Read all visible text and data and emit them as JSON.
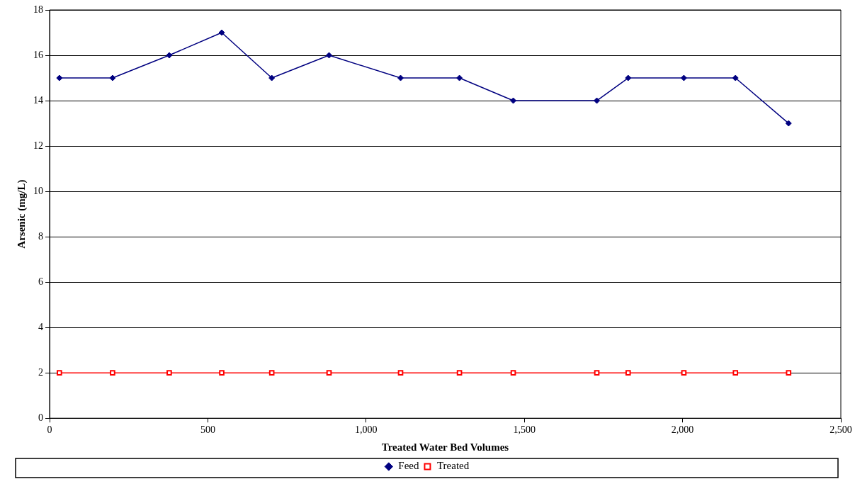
{
  "chart_data": {
    "type": "line",
    "xlabel": "Treated Water Bed Volumes",
    "ylabel": "Arsenic (mg/L)",
    "xlim": [
      0,
      2500
    ],
    "xticks": [
      0,
      {
        "value": 500,
        "label": "500"
      },
      {
        "value": 1000,
        "label": "1,000"
      },
      {
        "value": 1500,
        "label": "1,500"
      },
      {
        "value": 2000,
        "label": "2,000"
      },
      {
        "value": 2500,
        "label": "2,500"
      }
    ],
    "ylim": [
      0,
      18
    ],
    "yticks": [
      0,
      2,
      4,
      6,
      8,
      10,
      12,
      14,
      16,
      18
    ],
    "grid": "y",
    "legend": "bottom",
    "line_style": "solid",
    "series": [
      {
        "name": "Feed",
        "color": "#000080",
        "marker": "diamond",
        "x": [
          31,
          199,
          378,
          544,
          702,
          883,
          1109,
          1295,
          1465,
          1729,
          1828,
          2004,
          2167,
          2335
        ],
        "values": [
          15,
          15,
          16,
          17,
          15,
          16,
          15,
          15,
          14,
          14,
          15,
          15,
          15,
          13
        ]
      },
      {
        "name": "Treated",
        "color": "#ff0000",
        "marker": "square",
        "x": [
          31,
          199,
          378,
          544,
          702,
          883,
          1109,
          1295,
          1465,
          1729,
          1828,
          2004,
          2167,
          2335
        ],
        "values": [
          2,
          2,
          2,
          2,
          2,
          2,
          2,
          2,
          2,
          2,
          2,
          2,
          2,
          2
        ]
      }
    ]
  }
}
